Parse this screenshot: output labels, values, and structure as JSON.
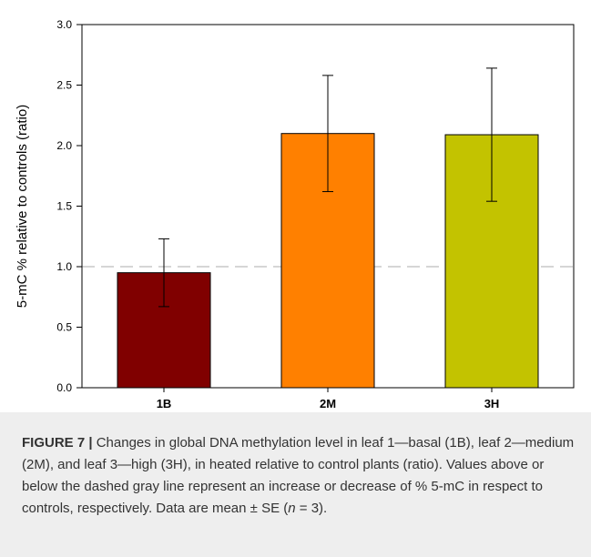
{
  "chart_data": {
    "type": "bar",
    "categories": [
      "1B",
      "2M",
      "3H"
    ],
    "values": [
      0.95,
      2.1,
      2.09
    ],
    "errors": [
      0.28,
      0.48,
      0.55
    ],
    "colors": [
      "#800000",
      "#ff8000",
      "#c3c300"
    ],
    "ylabel": "5-mC % relative to controls (ratio)",
    "xlabel": "",
    "ylim": [
      0,
      3.0
    ],
    "yticks": [
      "0.0",
      "0.5",
      "1.0",
      "1.5",
      "2.0",
      "2.5",
      "3.0"
    ],
    "reference_line": {
      "y": 1.0,
      "style": "dashed",
      "color": "#c8c8c8"
    },
    "grid": false,
    "legend": "none"
  },
  "caption": {
    "label": "FIGURE 7 |",
    "text_before_n": " Changes in global DNA methylation level in leaf 1—basal (1B), leaf 2—medium (2M), and leaf 3—high (3H), in heated relative to control plants (ratio). Values above or below the dashed gray line represent an increase or decrease of % 5-mC in respect to controls, respectively. Data are mean ± SE (",
    "n_symbol": "n",
    "text_after_n": " = 3)."
  }
}
